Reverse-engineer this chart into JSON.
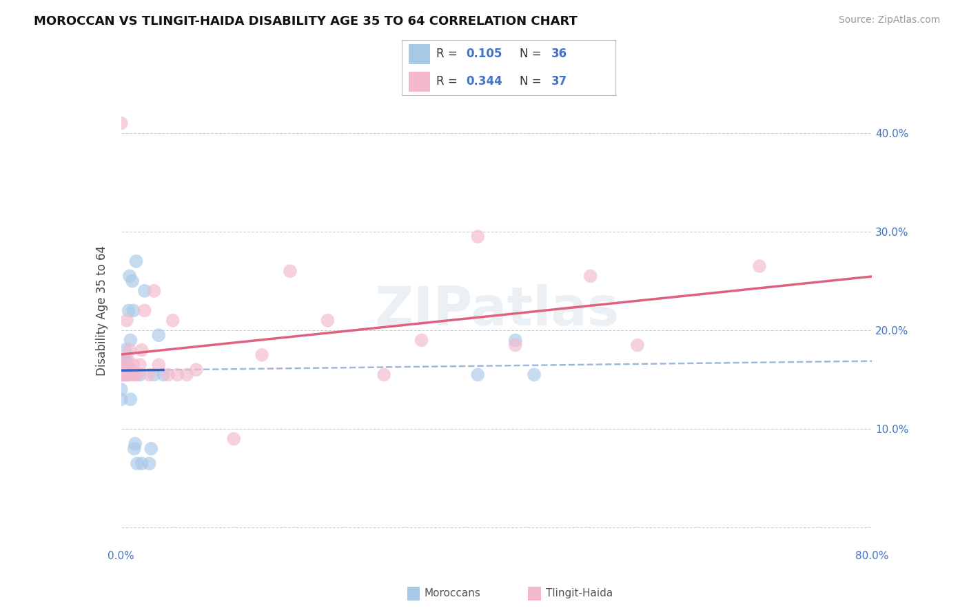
{
  "title": "MOROCCAN VS TLINGIT-HAIDA DISABILITY AGE 35 TO 64 CORRELATION CHART",
  "source": "Source: ZipAtlas.com",
  "ylabel": "Disability Age 35 to 64",
  "xlim": [
    0.0,
    0.8
  ],
  "ylim": [
    -0.02,
    0.46
  ],
  "x_ticks": [
    0.0,
    0.1,
    0.2,
    0.3,
    0.4,
    0.5,
    0.6,
    0.7,
    0.8
  ],
  "x_tick_labels": [
    "0.0%",
    "",
    "",
    "",
    "",
    "",
    "",
    "",
    "80.0%"
  ],
  "y_ticks": [
    0.0,
    0.1,
    0.2,
    0.3,
    0.4
  ],
  "y_right_labels": [
    "",
    "10.0%",
    "20.0%",
    "30.0%",
    "40.0%"
  ],
  "moroccan_color": "#a8c8e8",
  "tlingit_color": "#f4b8cc",
  "moroccan_line_color": "#3060c0",
  "tlingit_line_color": "#e06080",
  "moroccan_dashed_color": "#a0b8d8",
  "watermark": "ZIPatlas",
  "moroccan_x": [
    0.0,
    0.0,
    0.001,
    0.002,
    0.002,
    0.003,
    0.003,
    0.004,
    0.004,
    0.005,
    0.005,
    0.006,
    0.006,
    0.007,
    0.007,
    0.008,
    0.009,
    0.01,
    0.01,
    0.012,
    0.013,
    0.014,
    0.015,
    0.016,
    0.017,
    0.02,
    0.022,
    0.025,
    0.03,
    0.032,
    0.035,
    0.04,
    0.045,
    0.38,
    0.42,
    0.44
  ],
  "moroccan_y": [
    0.13,
    0.14,
    0.155,
    0.16,
    0.17,
    0.155,
    0.16,
    0.17,
    0.18,
    0.155,
    0.17,
    0.155,
    0.165,
    0.155,
    0.16,
    0.22,
    0.255,
    0.19,
    0.13,
    0.25,
    0.22,
    0.08,
    0.085,
    0.27,
    0.065,
    0.155,
    0.065,
    0.24,
    0.065,
    0.08,
    0.155,
    0.195,
    0.155,
    0.155,
    0.19,
    0.155
  ],
  "tlingit_x": [
    0.0,
    0.001,
    0.002,
    0.003,
    0.004,
    0.005,
    0.006,
    0.007,
    0.008,
    0.009,
    0.01,
    0.012,
    0.013,
    0.015,
    0.017,
    0.02,
    0.022,
    0.025,
    0.03,
    0.035,
    0.04,
    0.05,
    0.055,
    0.06,
    0.07,
    0.08,
    0.12,
    0.15,
    0.18,
    0.22,
    0.28,
    0.32,
    0.38,
    0.42,
    0.5,
    0.55,
    0.68
  ],
  "tlingit_y": [
    0.41,
    0.155,
    0.155,
    0.165,
    0.155,
    0.16,
    0.21,
    0.17,
    0.155,
    0.18,
    0.16,
    0.155,
    0.165,
    0.155,
    0.155,
    0.165,
    0.18,
    0.22,
    0.155,
    0.24,
    0.165,
    0.155,
    0.21,
    0.155,
    0.155,
    0.16,
    0.09,
    0.175,
    0.26,
    0.21,
    0.155,
    0.19,
    0.295,
    0.185,
    0.255,
    0.185,
    0.265
  ],
  "background_color": "#ffffff",
  "grid_color": "#cccccc",
  "legend_items": [
    {
      "color": "#a8c8e8",
      "r": "0.105",
      "n": "36"
    },
    {
      "color": "#f4b8cc",
      "r": "0.344",
      "n": "37"
    }
  ],
  "bottom_legend": [
    {
      "color": "#a8c8e8",
      "label": "Moroccans"
    },
    {
      "color": "#f4b8cc",
      "label": "Tlingit-Haida"
    }
  ]
}
